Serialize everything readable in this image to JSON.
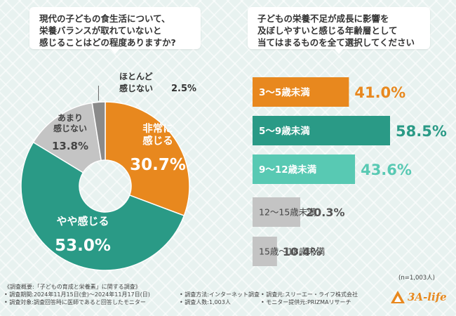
{
  "left_question": {
    "lines": [
      "現代の子どもの食生活について、",
      "栄養バランスが取れていないと",
      "感じることはどの程度ありますか?"
    ]
  },
  "right_question": {
    "lines": [
      "子どもの栄養不足が成長に影響を",
      "及ぼしやすいと感じる年齢層として",
      "当てはまるものを全て選択してください"
    ]
  },
  "sample_note": "(n=1,003人)",
  "footer": {
    "col1": [
      "《調査概要:「子どもの育成と栄養素」に関する調査》",
      "• 調査期間:2024年11月15日(金)〜2024年11月17日(日)",
      "• 調査対象:調査回答時に医師であると回答したモニター"
    ],
    "col2": [
      "",
      "• 調査方法:インターネット調査",
      "• 調査人数:1,003人"
    ],
    "col3": [
      "",
      "• 調査元:スリーエー・ライフ株式会社",
      "• モニター提供元:PRIZMAリサーチ"
    ]
  },
  "logo": {
    "text": "3A-life",
    "color": "#e8881e"
  },
  "colors": {
    "orange": "#e8881e",
    "teal": "#2a9a86",
    "light_teal": "#58c9b3",
    "gray": "#c4c4c4",
    "dark_gray": "#888888"
  },
  "chart_data": [
    {
      "type": "pie",
      "donut": true,
      "slices": [
        {
          "label_lines": [
            "非常に",
            "感じる"
          ],
          "value": 30.7,
          "value_text": "30.7%",
          "color": "#e8881e",
          "text_color": "#ffffff"
        },
        {
          "label_lines": [
            "やや感じる"
          ],
          "value": 53.0,
          "value_text": "53.0%",
          "color": "#2a9a86",
          "text_color": "#ffffff"
        },
        {
          "label_lines": [
            "あまり",
            "感じない"
          ],
          "value": 13.8,
          "value_text": "13.8%",
          "color": "#c4c4c4",
          "text_color": "#444444"
        },
        {
          "label_lines": [
            "ほとんど",
            "感じない"
          ],
          "value": 2.5,
          "value_text": "2.5%",
          "color": "#8a8a8a",
          "text_color": "#333333"
        }
      ]
    },
    {
      "type": "bar",
      "orientation": "horizontal",
      "categories": [
        "3〜5歳未満",
        "5〜9歳未満",
        "9〜12歳未満",
        "12〜15歳未満",
        "15歳〜18歳未満"
      ],
      "values": [
        41.0,
        58.5,
        43.6,
        20.3,
        10.4
      ],
      "value_labels": [
        "41.0%",
        "58.5%",
        "43.6%",
        "20.3%",
        "10.4%"
      ],
      "colors": [
        "#e8881e",
        "#2a9a86",
        "#58c9b3",
        "#c4c4c4",
        "#c4c4c4"
      ],
      "value_colors": [
        "#e8881e",
        "#2a9a86",
        "#58c9b3",
        "#555555",
        "#555555"
      ],
      "label_colors": [
        "#ffffff",
        "#ffffff",
        "#ffffff",
        "#444444",
        "#444444"
      ]
    }
  ]
}
